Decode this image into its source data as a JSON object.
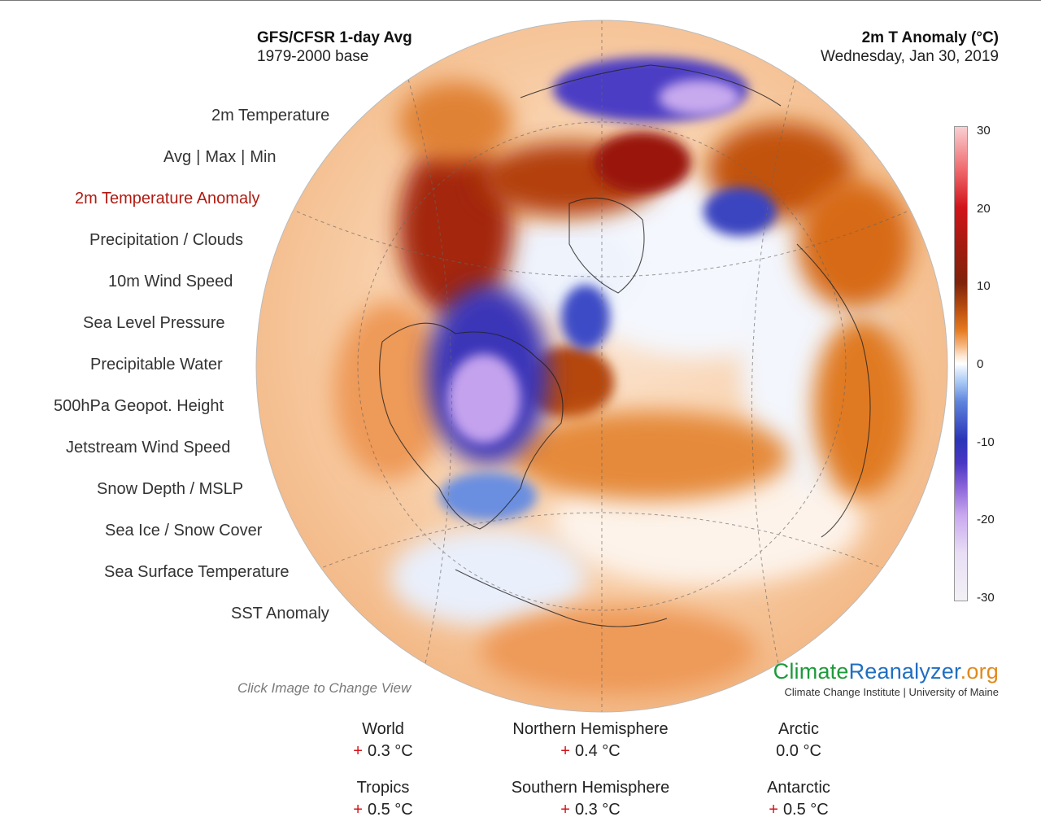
{
  "header": {
    "left_title": "GFS/CFSR 1-day Avg",
    "left_subtitle": "1979-2000 base",
    "right_title": "2m T Anomaly (°C)",
    "right_subtitle": "Wednesday, Jan 30, 2019"
  },
  "menu": {
    "temperature": "2m Temperature",
    "avg": "Avg",
    "max": "Max",
    "min": "Min",
    "sep": "|",
    "anomaly": "2m Temperature Anomaly",
    "precip": "Precipitation / Clouds",
    "wind": "10m Wind Speed",
    "slp": "Sea Level Pressure",
    "pwat": "Precipitable Water",
    "geopot": "500hPa Geopot. Height",
    "jet": "Jetstream Wind Speed",
    "snow": "Snow Depth / MSLP",
    "seaice": "Sea Ice / Snow Cover",
    "sst": "Sea Surface Temperature",
    "ssta": "SST Anomaly"
  },
  "colorbar": {
    "labels": [
      "30",
      "20",
      "10",
      "0",
      "-10",
      "-20",
      "-30"
    ]
  },
  "hint": "Click Image to Change View",
  "brand": {
    "logo_part1": "Climate",
    "logo_part2": "Reanalyzer",
    "logo_part3": ".org",
    "subtitle": "Climate Change Institute | University of Maine"
  },
  "stats": {
    "world": {
      "label": "World",
      "sign": "+",
      "value": "0.3 °C"
    },
    "nh": {
      "label": "Northern Hemisphere",
      "sign": "+",
      "value": "0.4 °C"
    },
    "arctic": {
      "label": "Arctic",
      "sign": "",
      "value": "0.0 °C"
    },
    "tropics": {
      "label": "Tropics",
      "sign": "+",
      "value": "0.5 °C"
    },
    "sh": {
      "label": "Southern Hemisphere",
      "sign": "+",
      "value": "0.3 °C"
    },
    "antarctic": {
      "label": "Antarctic",
      "sign": "+",
      "value": "0.5 °C"
    }
  },
  "colors": {
    "active_menu": "#b01b12",
    "warm_anomaly": "#d1141b",
    "cold_anomaly": "#2a35b7",
    "brand_green": "#1d9a3b",
    "brand_blue": "#1f6fc1",
    "brand_orange": "#e08a1e"
  }
}
